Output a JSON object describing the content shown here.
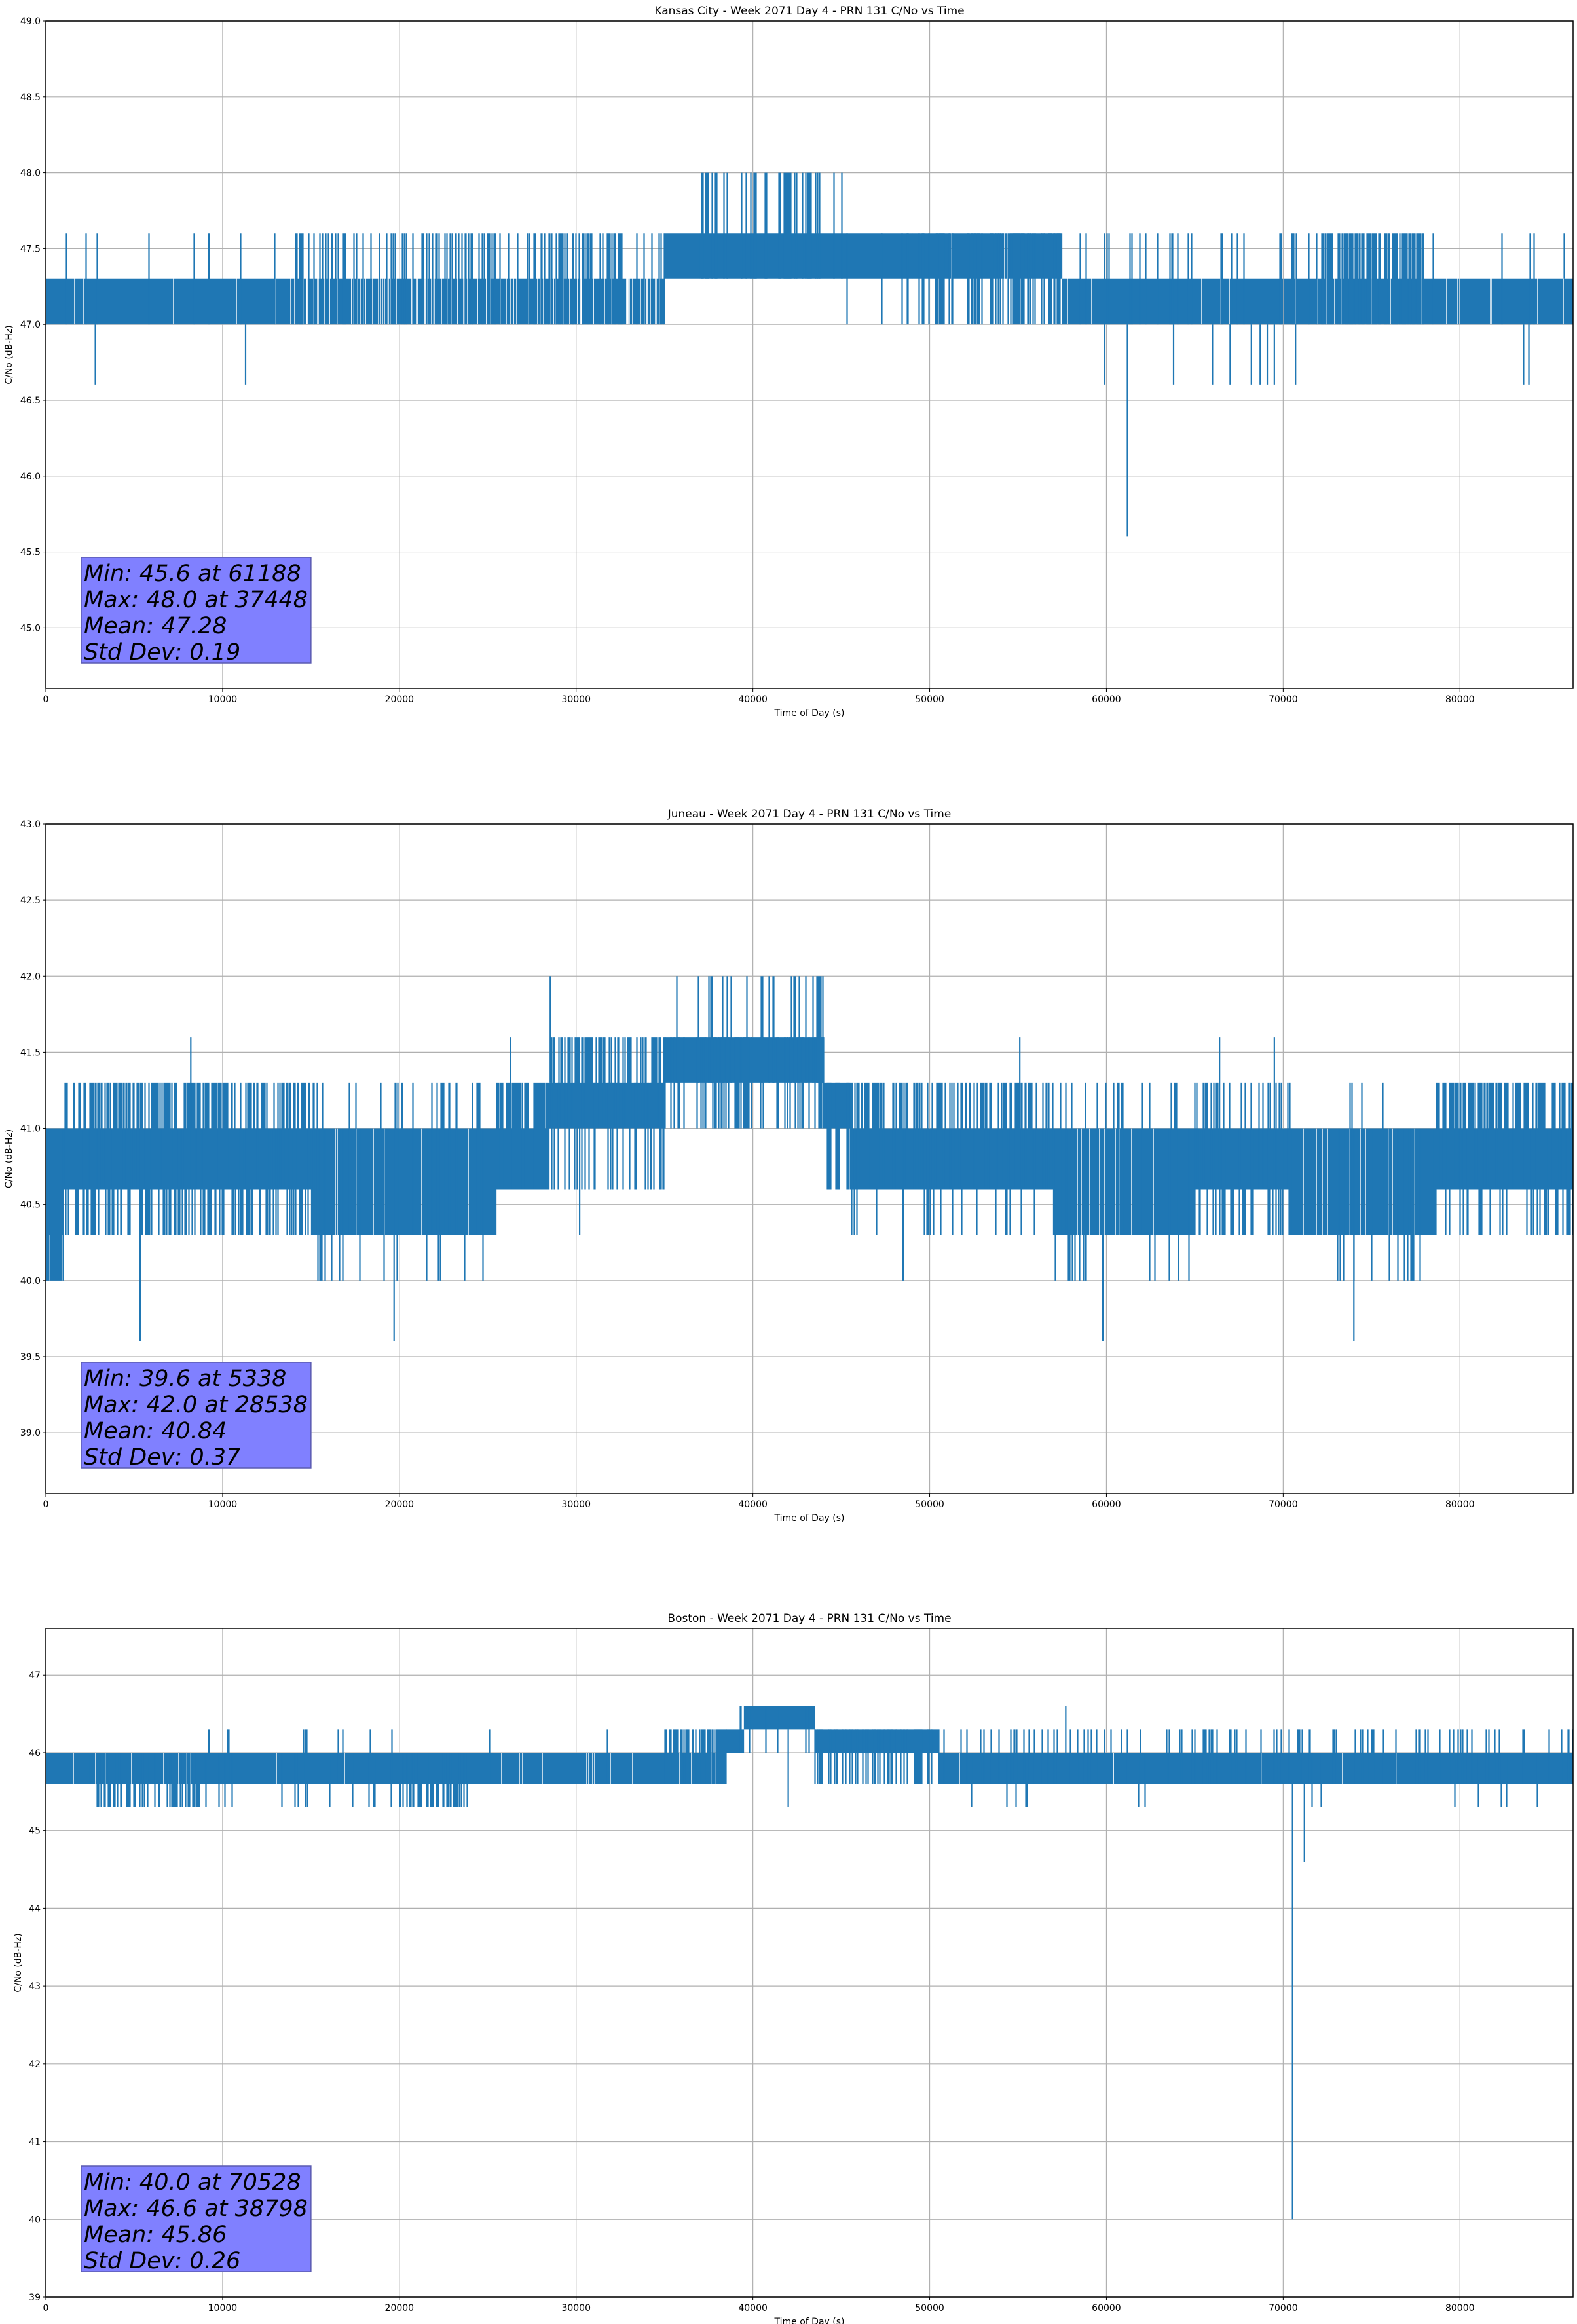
{
  "colors": {
    "series": "#1f77b4",
    "grid": "#b0b0b0",
    "stats_box": "#8080ff",
    "stats_border": "#5a5ab0"
  },
  "chart_data": [
    {
      "type": "line",
      "title": "Kansas City - Week 2071 Day 4 - PRN 131 C/No vs Time",
      "xlabel": "Time of Day (s)",
      "ylabel": "C/No (dB-Hz)",
      "xlim": [
        0,
        86400
      ],
      "ylim": [
        44.6,
        49.0
      ],
      "xticks": [
        0,
        10000,
        20000,
        30000,
        40000,
        50000,
        60000,
        70000,
        80000
      ],
      "xtick_labels": [
        "0",
        "10000",
        "20000",
        "30000",
        "40000",
        "50000",
        "60000",
        "70000",
        "80000"
      ],
      "yticks": [
        45.0,
        45.5,
        46.0,
        46.5,
        47.0,
        47.5,
        48.0,
        48.5,
        49.0
      ],
      "ytick_labels": [
        "45.0",
        "45.5",
        "46.0",
        "46.5",
        "47.0",
        "47.5",
        "48.0",
        "48.5",
        "49.0"
      ],
      "grid": true,
      "segments": [
        {
          "x0": 0,
          "x1": 14000,
          "lo": 47.0,
          "hi": 47.3,
          "up": 47.6,
          "up_rate": 0.02,
          "down": 46.6,
          "down_rate": 0.0,
          "gap": 0.02
        },
        {
          "x0": 14000,
          "x1": 35000,
          "lo": 47.0,
          "hi": 47.3,
          "up": 47.6,
          "up_rate": 0.18,
          "down": 47.0,
          "down_rate": 0.0,
          "gap": 0.25
        },
        {
          "x0": 35000,
          "x1": 37000,
          "lo": 47.3,
          "hi": 47.6,
          "up": 48.0,
          "up_rate": 0.0,
          "down": 47.0,
          "down_rate": 0.02,
          "gap": 0.0
        },
        {
          "x0": 37000,
          "x1": 45000,
          "lo": 47.3,
          "hi": 47.6,
          "up": 48.0,
          "up_rate": 0.18,
          "down": 47.0,
          "down_rate": 0.0,
          "gap": 0.0
        },
        {
          "x0": 45000,
          "x1": 49000,
          "lo": 47.3,
          "hi": 47.6,
          "up": 48.0,
          "up_rate": 0.01,
          "down": 47.0,
          "down_rate": 0.03,
          "gap": 0.0
        },
        {
          "x0": 49000,
          "x1": 57500,
          "lo": 47.3,
          "hi": 47.6,
          "up": 47.6,
          "up_rate": 0.0,
          "down": 47.0,
          "down_rate": 0.3,
          "gap": 0.05
        },
        {
          "x0": 57500,
          "x1": 72000,
          "lo": 47.0,
          "hi": 47.3,
          "up": 47.6,
          "up_rate": 0.08,
          "down": 46.6,
          "down_rate": 0.0,
          "gap": 0.05
        },
        {
          "x0": 72000,
          "x1": 78000,
          "lo": 47.0,
          "hi": 47.3,
          "up": 47.6,
          "up_rate": 0.45,
          "down": 46.6,
          "down_rate": 0.0,
          "gap": 0.15
        },
        {
          "x0": 78000,
          "x1": 86400,
          "lo": 47.0,
          "hi": 47.3,
          "up": 47.6,
          "up_rate": 0.01,
          "down": 46.6,
          "down_rate": 0.0,
          "gap": 0.04
        }
      ],
      "outliers": [
        {
          "x": 2800,
          "y": 46.6
        },
        {
          "x": 11300,
          "y": 46.6
        },
        {
          "x": 59900,
          "y": 46.6
        },
        {
          "x": 61188,
          "y": 45.6
        },
        {
          "x": 63800,
          "y": 46.6
        },
        {
          "x": 66000,
          "y": 46.6
        },
        {
          "x": 67000,
          "y": 46.6
        },
        {
          "x": 68200,
          "y": 46.6
        },
        {
          "x": 68700,
          "y": 46.6
        },
        {
          "x": 69100,
          "y": 46.6
        },
        {
          "x": 69500,
          "y": 46.6
        },
        {
          "x": 70700,
          "y": 46.6
        },
        {
          "x": 83600,
          "y": 46.6
        },
        {
          "x": 83900,
          "y": 46.6
        },
        {
          "x": 85900,
          "y": 47.6
        }
      ],
      "stats": {
        "min": "Min: 45.6 at 61188",
        "max": "Max: 48.0 at 37448",
        "mean": "Mean: 47.28",
        "std": "Std Dev: 0.19"
      }
    },
    {
      "type": "line",
      "title": "Juneau - Week 2071 Day 4 - PRN 131 C/No vs Time",
      "xlabel": "Time of Day (s)",
      "ylabel": "C/No (dB-Hz)",
      "xlim": [
        0,
        86400
      ],
      "ylim": [
        38.6,
        43.0
      ],
      "xticks": [
        0,
        10000,
        20000,
        30000,
        40000,
        50000,
        60000,
        70000,
        80000
      ],
      "xtick_labels": [
        "0",
        "10000",
        "20000",
        "30000",
        "40000",
        "50000",
        "60000",
        "70000",
        "80000"
      ],
      "yticks": [
        39.0,
        39.5,
        40.0,
        40.5,
        41.0,
        41.5,
        42.0,
        42.5,
        43.0
      ],
      "ytick_labels": [
        "39.0",
        "39.5",
        "40.0",
        "40.5",
        "41.0",
        "41.5",
        "42.0",
        "42.5",
        "43.0"
      ],
      "grid": true,
      "segments": [
        {
          "x0": 0,
          "x1": 1000,
          "lo": 40.3,
          "hi": 41.0,
          "up": 41.0,
          "up_rate": 0.0,
          "down": 40.0,
          "down_rate": 0.5,
          "gap": 0.0
        },
        {
          "x0": 1000,
          "x1": 15000,
          "lo": 40.6,
          "hi": 41.0,
          "up": 41.3,
          "up_rate": 0.35,
          "down": 40.3,
          "down_rate": 0.3,
          "gap": 0.0
        },
        {
          "x0": 15000,
          "x1": 25500,
          "lo": 40.3,
          "hi": 41.0,
          "up": 41.3,
          "up_rate": 0.1,
          "down": 40.0,
          "down_rate": 0.04,
          "gap": 0.03
        },
        {
          "x0": 25500,
          "x1": 28500,
          "lo": 40.6,
          "hi": 41.0,
          "up": 41.3,
          "up_rate": 0.5,
          "down": 40.3,
          "down_rate": 0.02,
          "gap": 0.0
        },
        {
          "x0": 28500,
          "x1": 35000,
          "lo": 41.0,
          "hi": 41.3,
          "up": 41.6,
          "up_rate": 0.3,
          "down": 40.6,
          "down_rate": 0.2,
          "gap": 0.0
        },
        {
          "x0": 35000,
          "x1": 44000,
          "lo": 41.3,
          "hi": 41.6,
          "up": 42.0,
          "up_rate": 0.1,
          "down": 41.0,
          "down_rate": 0.25,
          "gap": 0.0
        },
        {
          "x0": 44000,
          "x1": 45500,
          "lo": 41.0,
          "hi": 41.3,
          "up": 41.3,
          "up_rate": 0.0,
          "down": 40.6,
          "down_rate": 0.3,
          "gap": 0.0
        },
        {
          "x0": 45500,
          "x1": 57000,
          "lo": 40.6,
          "hi": 41.0,
          "up": 41.3,
          "up_rate": 0.3,
          "down": 40.3,
          "down_rate": 0.03,
          "gap": 0.0
        },
        {
          "x0": 57000,
          "x1": 65000,
          "lo": 40.3,
          "hi": 41.0,
          "up": 41.3,
          "up_rate": 0.1,
          "down": 40.0,
          "down_rate": 0.06,
          "gap": 0.05
        },
        {
          "x0": 65000,
          "x1": 70500,
          "lo": 40.6,
          "hi": 41.0,
          "up": 41.3,
          "up_rate": 0.2,
          "down": 40.3,
          "down_rate": 0.2,
          "gap": 0.0
        },
        {
          "x0": 70500,
          "x1": 78500,
          "lo": 40.3,
          "hi": 41.0,
          "up": 41.3,
          "up_rate": 0.05,
          "down": 40.0,
          "down_rate": 0.06,
          "gap": 0.05
        },
        {
          "x0": 78500,
          "x1": 86400,
          "lo": 40.6,
          "hi": 41.0,
          "up": 41.3,
          "up_rate": 0.35,
          "down": 40.3,
          "down_rate": 0.15,
          "gap": 0.0
        }
      ],
      "outliers": [
        {
          "x": 5338,
          "y": 39.6
        },
        {
          "x": 8200,
          "y": 41.6
        },
        {
          "x": 19700,
          "y": 39.6
        },
        {
          "x": 26300,
          "y": 41.6
        },
        {
          "x": 28538,
          "y": 42.0
        },
        {
          "x": 30200,
          "y": 40.3
        },
        {
          "x": 48500,
          "y": 40.0
        },
        {
          "x": 59800,
          "y": 39.6
        },
        {
          "x": 74000,
          "y": 39.6
        },
        {
          "x": 66400,
          "y": 41.6
        },
        {
          "x": 69500,
          "y": 41.6
        },
        {
          "x": 55100,
          "y": 41.6
        }
      ],
      "stats": {
        "min": "Min: 39.6 at 5338",
        "max": "Max: 42.0 at 28538",
        "mean": "Mean: 40.84",
        "std": "Std Dev: 0.37"
      }
    },
    {
      "type": "line",
      "title": "Boston - Week 2071 Day 4 - PRN 131 C/No vs Time",
      "xlabel": "Time of Day (s)",
      "ylabel": "C/No (dB-Hz)",
      "xlim": [
        0,
        86400
      ],
      "ylim": [
        39,
        47.6
      ],
      "xticks": [
        0,
        10000,
        20000,
        30000,
        40000,
        50000,
        60000,
        70000,
        80000
      ],
      "xtick_labels": [
        "0",
        "10000",
        "20000",
        "30000",
        "40000",
        "50000",
        "60000",
        "70000",
        "80000"
      ],
      "yticks": [
        39,
        40,
        41,
        42,
        43,
        44,
        45,
        46,
        47
      ],
      "ytick_labels": [
        "39",
        "40",
        "41",
        "42",
        "43",
        "44",
        "45",
        "46",
        "47"
      ],
      "grid": true,
      "segments": [
        {
          "x0": 0,
          "x1": 2500,
          "lo": 45.6,
          "hi": 46.0,
          "up": 46.3,
          "up_rate": 0.0,
          "down": 45.3,
          "down_rate": 0.03,
          "gap": 0.05
        },
        {
          "x0": 2500,
          "x1": 9000,
          "lo": 45.6,
          "hi": 46.0,
          "up": 46.3,
          "up_rate": 0.0,
          "down": 45.3,
          "down_rate": 0.3,
          "gap": 0.05
        },
        {
          "x0": 9000,
          "x1": 20000,
          "lo": 45.6,
          "hi": 46.0,
          "up": 46.3,
          "up_rate": 0.03,
          "down": 45.3,
          "down_rate": 0.03,
          "gap": 0.02
        },
        {
          "x0": 20000,
          "x1": 24000,
          "lo": 45.6,
          "hi": 46.0,
          "up": 46.3,
          "up_rate": 0.0,
          "down": 45.3,
          "down_rate": 0.35,
          "gap": 0.0
        },
        {
          "x0": 24000,
          "x1": 35000,
          "lo": 45.6,
          "hi": 46.0,
          "up": 46.3,
          "up_rate": 0.02,
          "down": 45.3,
          "down_rate": 0.0,
          "gap": 0.03
        },
        {
          "x0": 35000,
          "x1": 38500,
          "lo": 45.6,
          "hi": 46.0,
          "up": 46.3,
          "up_rate": 0.6,
          "down": 45.3,
          "down_rate": 0.0,
          "gap": 0.15
        },
        {
          "x0": 38500,
          "x1": 39500,
          "lo": 46.0,
          "hi": 46.3,
          "up": 46.6,
          "up_rate": 0.1,
          "down": 45.6,
          "down_rate": 0.0,
          "gap": 0.0
        },
        {
          "x0": 39500,
          "x1": 43500,
          "lo": 46.3,
          "hi": 46.6,
          "up": 46.6,
          "up_rate": 0.0,
          "down": 46.0,
          "down_rate": 0.05,
          "gap": 0.0
        },
        {
          "x0": 43500,
          "x1": 50500,
          "lo": 46.0,
          "hi": 46.3,
          "up": 46.3,
          "up_rate": 0.0,
          "down": 45.6,
          "down_rate": 0.25,
          "gap": 0.0
        },
        {
          "x0": 50500,
          "x1": 86400,
          "lo": 45.6,
          "hi": 46.0,
          "up": 46.3,
          "up_rate": 0.1,
          "down": 45.3,
          "down_rate": 0.02,
          "gap": 0.02
        }
      ],
      "outliers": [
        {
          "x": 42000,
          "y": 45.3
        },
        {
          "x": 57700,
          "y": 46.6
        },
        {
          "x": 70528,
          "y": 40.0
        },
        {
          "x": 71200,
          "y": 44.6
        }
      ],
      "stats": {
        "min": "Min: 40.0 at 70528",
        "max": "Max: 46.6 at 38798",
        "mean": "Mean: 45.86",
        "std": "Std Dev: 0.26"
      }
    }
  ]
}
